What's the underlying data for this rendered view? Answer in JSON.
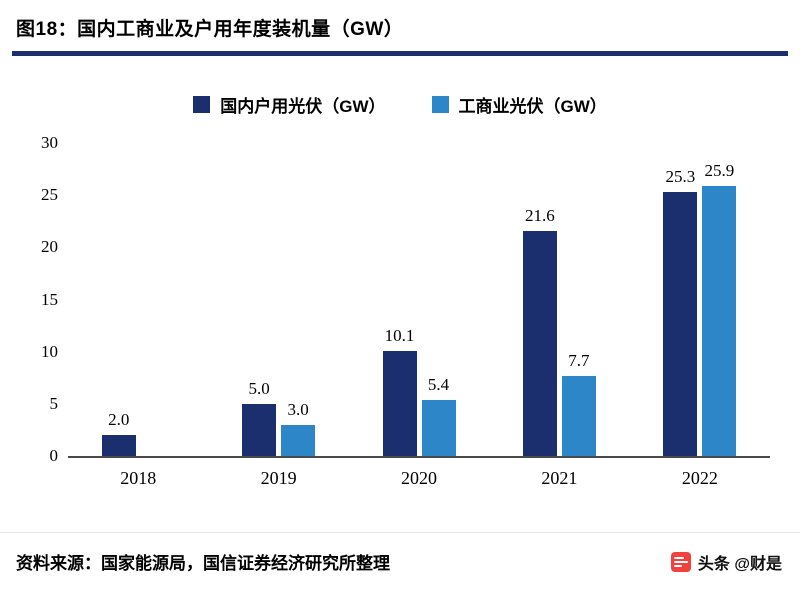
{
  "title": "图18：国内工商业及户用年度装机量（GW）",
  "legend": [
    {
      "label": "国内户用光伏（GW）",
      "color": "#1b2e6e"
    },
    {
      "label": "工商业光伏（GW）",
      "color": "#2c86c8"
    }
  ],
  "chart_data": {
    "type": "bar",
    "title": "图18：国内工商业及户用年度装机量（GW）",
    "categories": [
      "2018",
      "2019",
      "2020",
      "2021",
      "2022"
    ],
    "series": [
      {
        "name": "国内户用光伏（GW）",
        "color": "#1b2e6e",
        "values": [
          2.0,
          5.0,
          10.1,
          21.6,
          25.3
        ]
      },
      {
        "name": "工商业光伏（GW）",
        "color": "#2c86c8",
        "values": [
          null,
          3.0,
          5.4,
          7.7,
          25.9
        ]
      }
    ],
    "xlabel": "",
    "ylabel": "",
    "ylim": [
      0,
      30
    ],
    "yticks": [
      0,
      5,
      10,
      15,
      20,
      25,
      30
    ],
    "grid": false,
    "legend_position": "top",
    "data_labels": true
  },
  "source": "资料来源：国家能源局，国信证券经济研究所整理",
  "watermark": {
    "brand": "头条",
    "handle": "@财是"
  },
  "colors": {
    "accent": "#1b2e6e",
    "series_residential": "#1b2e6e",
    "series_ci": "#2c86c8",
    "watermark_red": "#f0413f",
    "axis_line": "#4a4a4a"
  }
}
